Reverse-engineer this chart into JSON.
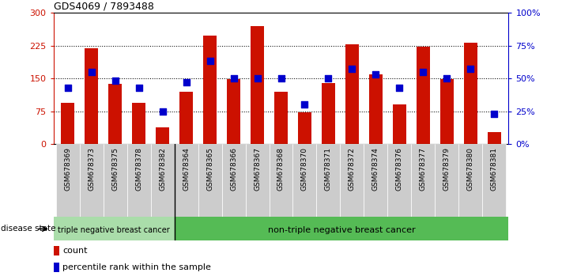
{
  "title": "GDS4069 / 7893488",
  "samples": [
    "GSM678369",
    "GSM678373",
    "GSM678375",
    "GSM678378",
    "GSM678382",
    "GSM678364",
    "GSM678365",
    "GSM678366",
    "GSM678367",
    "GSM678368",
    "GSM678370",
    "GSM678371",
    "GSM678372",
    "GSM678374",
    "GSM678376",
    "GSM678377",
    "GSM678379",
    "GSM678380",
    "GSM678381"
  ],
  "counts": [
    95,
    218,
    138,
    95,
    38,
    120,
    248,
    148,
    270,
    120,
    73,
    140,
    228,
    160,
    90,
    222,
    148,
    232,
    28
  ],
  "percentiles": [
    43,
    55,
    48,
    43,
    25,
    47,
    63,
    50,
    50,
    50,
    30,
    50,
    57,
    53,
    43,
    55,
    50,
    57,
    23
  ],
  "triple_negative_count": 5,
  "bar_color": "#CC1100",
  "dot_color": "#0000CC",
  "ylim_left": [
    0,
    300
  ],
  "ylim_right": [
    0,
    100
  ],
  "yticks_left": [
    0,
    75,
    150,
    225,
    300
  ],
  "yticks_right": [
    0,
    25,
    50,
    75,
    100
  ],
  "ytick_labels_left": [
    "0",
    "75",
    "150",
    "225",
    "300"
  ],
  "ytick_labels_right": [
    "0%",
    "25%",
    "50%",
    "75%",
    "100%"
  ],
  "hlines": [
    75,
    150,
    225
  ],
  "disease_state_label": "disease state",
  "group1_label": "triple negative breast cancer",
  "group2_label": "non-triple negative breast cancer",
  "legend_count": "count",
  "legend_percentile": "percentile rank within the sample",
  "bg_color": "#FFFFFF",
  "plot_bg": "#FFFFFF",
  "tick_label_color_left": "#CC1100",
  "tick_label_color_right": "#0000CC",
  "bar_width": 0.55,
  "group1_color": "#AADDAA",
  "group2_color": "#55BB55",
  "xtick_bg": "#CCCCCC"
}
